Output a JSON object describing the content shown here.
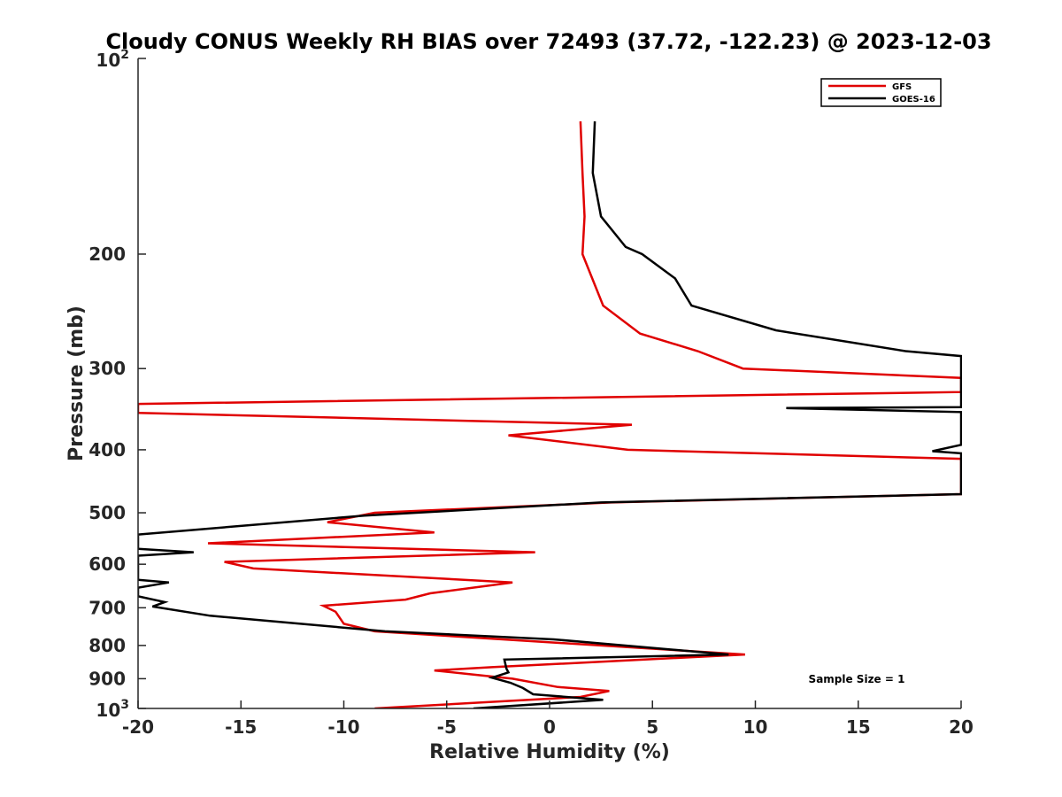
{
  "chart_data": {
    "type": "line",
    "title": "Cloudy CONUS Weekly RH BIAS over 72493 (37.72, -122.23) @ 2023-12-03",
    "xlabel": "Relative Humidity (%)",
    "ylabel": "Pressure (mb)",
    "xlim": [
      -20,
      20
    ],
    "ylim": [
      100,
      1000
    ],
    "y_scale": "log",
    "y_reversed": true,
    "grid": false,
    "legend_position": "top-right",
    "x_ticks": [
      {
        "value": -20,
        "label": "-20"
      },
      {
        "value": -15,
        "label": "-15"
      },
      {
        "value": -10,
        "label": "-10"
      },
      {
        "value": -5,
        "label": "-5"
      },
      {
        "value": 0,
        "label": "0"
      },
      {
        "value": 5,
        "label": "5"
      },
      {
        "value": 10,
        "label": "10"
      },
      {
        "value": 15,
        "label": "15"
      },
      {
        "value": 20,
        "label": "20"
      }
    ],
    "y_ticks": [
      {
        "value": 100,
        "base": "10",
        "exp": "2"
      },
      {
        "value": 200,
        "label": "200"
      },
      {
        "value": 300,
        "label": "300"
      },
      {
        "value": 400,
        "label": "400"
      },
      {
        "value": 500,
        "label": "500"
      },
      {
        "value": 600,
        "label": "600"
      },
      {
        "value": 700,
        "label": "700"
      },
      {
        "value": 800,
        "label": "800"
      },
      {
        "value": 900,
        "label": "900"
      },
      {
        "value": 1000,
        "base": "10",
        "exp": "3"
      }
    ],
    "annotation": "Sample Size = 1",
    "series": [
      {
        "name": "GFS",
        "color": "#e00000",
        "points": [
          [
            1.5,
            125
          ],
          [
            1.6,
            150
          ],
          [
            1.7,
            175
          ],
          [
            1.6,
            200
          ],
          [
            2.6,
            240
          ],
          [
            4.4,
            265
          ],
          [
            7.2,
            282
          ],
          [
            9.4,
            300
          ],
          [
            20,
            310
          ],
          [
            20,
            326
          ],
          [
            -20,
            340
          ],
          [
            -20,
            351
          ],
          [
            4.0,
            366
          ],
          [
            -2.0,
            380
          ],
          [
            3.8,
            400
          ],
          [
            20,
            413
          ],
          [
            20,
            468
          ],
          [
            3,
            482
          ],
          [
            -8.5,
            500
          ],
          [
            -10.8,
            517
          ],
          [
            -5.6,
            536
          ],
          [
            -16.6,
            557
          ],
          [
            -0.7,
            575
          ],
          [
            -15.8,
            595
          ],
          [
            -14.4,
            609
          ],
          [
            -1.8,
            640
          ],
          [
            -5.8,
            665
          ],
          [
            -7.0,
            680
          ],
          [
            -11.0,
            695
          ],
          [
            -10.4,
            710
          ],
          [
            -10.0,
            741
          ],
          [
            -8.5,
            761
          ],
          [
            9.5,
            826
          ],
          [
            -2.8,
            864
          ],
          [
            -5.6,
            874
          ],
          [
            -1.8,
            900
          ],
          [
            0.4,
            927
          ],
          [
            2.9,
            940
          ],
          [
            1.5,
            960
          ],
          [
            -8.5,
            1000
          ]
        ]
      },
      {
        "name": "GOES-16",
        "color": "#000000",
        "points": [
          [
            2.2,
            125
          ],
          [
            2.1,
            150
          ],
          [
            2.5,
            175
          ],
          [
            3.7,
            195
          ],
          [
            4.5,
            200
          ],
          [
            6.1,
            218
          ],
          [
            6.9,
            240
          ],
          [
            11.0,
            262
          ],
          [
            17.3,
            282
          ],
          [
            20,
            287
          ],
          [
            20,
            344
          ],
          [
            11.5,
            345
          ],
          [
            20,
            350
          ],
          [
            20,
            393
          ],
          [
            18.6,
            402
          ],
          [
            20,
            405
          ],
          [
            20,
            468
          ],
          [
            2.5,
            482
          ],
          [
            -9,
            505
          ],
          [
            -20,
            540
          ],
          [
            -20,
            568
          ],
          [
            -17.3,
            575
          ],
          [
            -20,
            582
          ],
          [
            -20,
            634
          ],
          [
            -18.5,
            640
          ],
          [
            -20,
            652
          ],
          [
            -20,
            672
          ],
          [
            -18.7,
            686
          ],
          [
            -19.3,
            697
          ],
          [
            -16.5,
            720
          ],
          [
            -12.1,
            741
          ],
          [
            -8.0,
            761
          ],
          [
            0.2,
            783
          ],
          [
            8.7,
            826
          ],
          [
            -2.2,
            841
          ],
          [
            -2.1,
            868
          ],
          [
            -2.0,
            880
          ],
          [
            -2.8,
            897
          ],
          [
            -1.9,
            913
          ],
          [
            -1.3,
            930
          ],
          [
            -0.8,
            951
          ],
          [
            2.6,
            970
          ],
          [
            -3.7,
            1000
          ]
        ]
      }
    ]
  }
}
